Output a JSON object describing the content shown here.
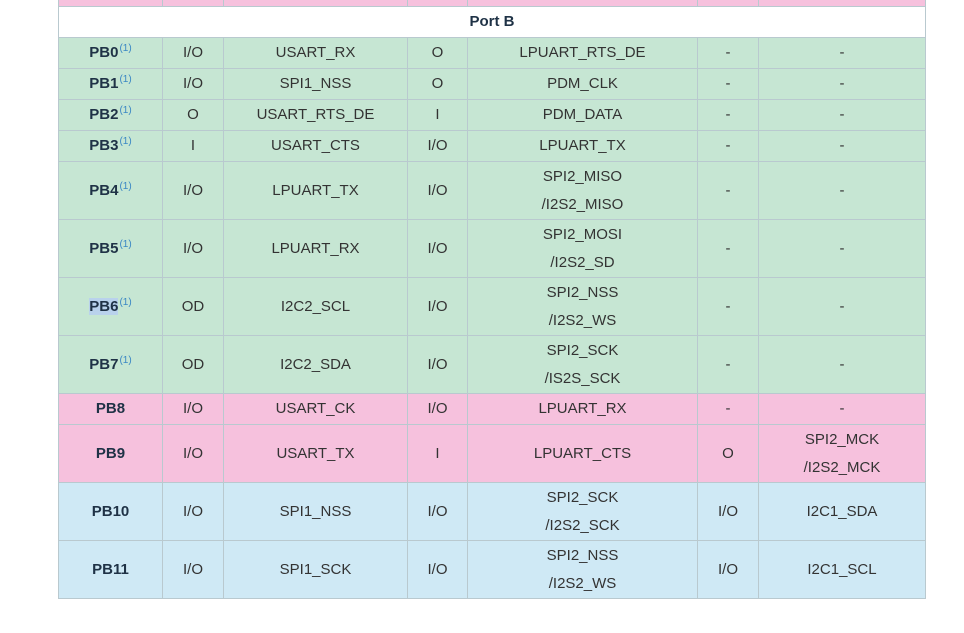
{
  "section_title": "Port B",
  "colors": {
    "green": "#c6e6d3",
    "pink": "#f6c1dd",
    "blue": "#cfe9f5",
    "topstub": "#f6c1dd"
  },
  "rows": [
    {
      "pin": "PB0",
      "note": "(1)",
      "c1": "I/O",
      "c2": [
        "USART_RX"
      ],
      "c3": "O",
      "c4": [
        "LPUART_RTS_DE"
      ],
      "c5": "-",
      "c6": [
        "-"
      ],
      "color": "green",
      "tall": false
    },
    {
      "pin": "PB1",
      "note": "(1)",
      "c1": "I/O",
      "c2": [
        "SPI1_NSS"
      ],
      "c3": "O",
      "c4": [
        "PDM_CLK"
      ],
      "c5": "-",
      "c6": [
        "-"
      ],
      "color": "green",
      "tall": false
    },
    {
      "pin": "PB2",
      "note": "(1)",
      "c1": "O",
      "c2": [
        "USART_RTS_DE"
      ],
      "c3": "I",
      "c4": [
        "PDM_DATA"
      ],
      "c5": "-",
      "c6": [
        "-"
      ],
      "color": "green",
      "tall": false
    },
    {
      "pin": "PB3",
      "note": "(1)",
      "c1": "I",
      "c2": [
        "USART_CTS"
      ],
      "c3": "I/O",
      "c4": [
        "LPUART_TX"
      ],
      "c5": "-",
      "c6": [
        "-"
      ],
      "color": "green",
      "tall": false
    },
    {
      "pin": "PB4",
      "note": "(1)",
      "c1": "I/O",
      "c2": [
        "LPUART_TX"
      ],
      "c3": "I/O",
      "c4": [
        "SPI2_MISO",
        "/I2S2_MISO"
      ],
      "c5": "-",
      "c6": [
        "-"
      ],
      "color": "green",
      "tall": true
    },
    {
      "pin": "PB5",
      "note": "(1)",
      "c1": "I/O",
      "c2": [
        "LPUART_RX"
      ],
      "c3": "I/O",
      "c4": [
        "SPI2_MOSI",
        "/I2S2_SD"
      ],
      "c5": "-",
      "c6": [
        "-"
      ],
      "color": "green",
      "tall": true
    },
    {
      "pin": "PB6",
      "note": "(1)",
      "c1": "OD",
      "c2": [
        "I2C2_SCL"
      ],
      "c3": "I/O",
      "c4": [
        "SPI2_NSS",
        "/I2S2_WS"
      ],
      "c5": "-",
      "c6": [
        "-"
      ],
      "color": "green",
      "tall": true,
      "highlight": true
    },
    {
      "pin": "PB7",
      "note": "(1)",
      "c1": "OD",
      "c2": [
        "I2C2_SDA"
      ],
      "c3": "I/O",
      "c4": [
        "SPI2_SCK",
        "/IS2S_SCK"
      ],
      "c5": "-",
      "c6": [
        "-"
      ],
      "color": "green",
      "tall": true
    },
    {
      "pin": "PB8",
      "note": "",
      "c1": "I/O",
      "c2": [
        "USART_CK"
      ],
      "c3": "I/O",
      "c4": [
        "LPUART_RX"
      ],
      "c5": "-",
      "c6": [
        "-"
      ],
      "color": "pink",
      "tall": false
    },
    {
      "pin": "PB9",
      "note": "",
      "c1": "I/O",
      "c2": [
        "USART_TX"
      ],
      "c3": "I",
      "c4": [
        "LPUART_CTS"
      ],
      "c5": "O",
      "c6": [
        "SPI2_MCK",
        "/I2S2_MCK"
      ],
      "color": "pink",
      "tall": true
    },
    {
      "pin": "PB10",
      "note": "",
      "c1": "I/O",
      "c2": [
        "SPI1_NSS"
      ],
      "c3": "I/O",
      "c4": [
        "SPI2_SCK",
        "/I2S2_SCK"
      ],
      "c5": "I/O",
      "c6": [
        "I2C1_SDA"
      ],
      "color": "blue",
      "tall": true
    },
    {
      "pin": "PB11",
      "note": "",
      "c1": "I/O",
      "c2": [
        "SPI1_SCK"
      ],
      "c3": "I/O",
      "c4": [
        "SPI2_NSS",
        "/I2S2_WS"
      ],
      "c5": "I/O",
      "c6": [
        "I2C1_SCL"
      ],
      "color": "blue",
      "tall": true
    }
  ]
}
